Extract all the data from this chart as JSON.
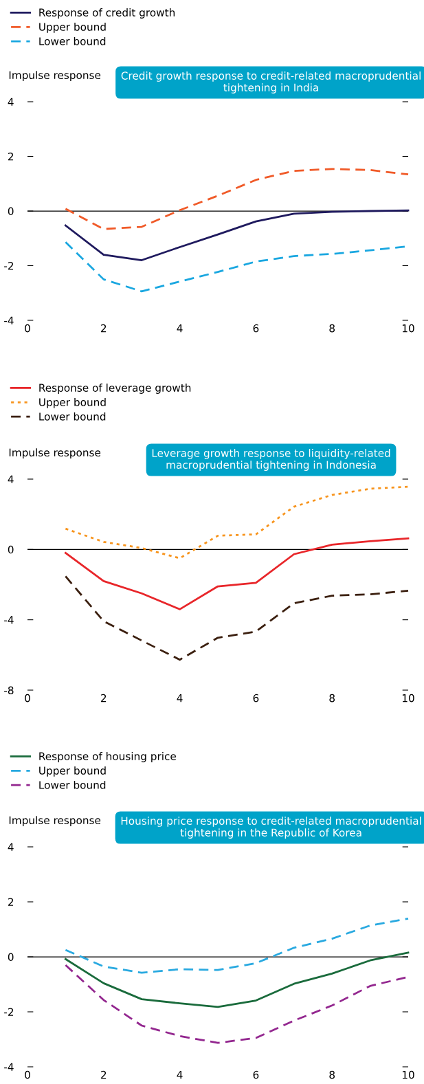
{
  "chart_data": [
    {
      "type": "line",
      "title": "Credit growth response to credit-related macroprudential tightening in India",
      "ylabel": "Impulse response",
      "x": [
        1,
        2,
        3,
        4,
        5,
        6,
        7,
        8,
        9,
        10
      ],
      "xlim": [
        0,
        10
      ],
      "xticks": [
        0,
        2,
        4,
        6,
        8,
        10
      ],
      "ylim": [
        -4,
        4
      ],
      "yticks": [
        -4,
        -2,
        0,
        2,
        4
      ],
      "grid": false,
      "legend": "top left",
      "ref_lines": [
        {
          "axis": "y",
          "value": 0,
          "color": "#000000"
        }
      ],
      "series": [
        {
          "name": "Response of credit growth",
          "color": "#1f1a5e",
          "line_style": "solid",
          "values": [
            -0.53,
            -1.6,
            -1.8,
            -1.32,
            -0.86,
            -0.38,
            -0.1,
            -0.03,
            0.0,
            0.02
          ]
        },
        {
          "name": "Upper bound",
          "color": "#f05a28",
          "line_style": "dashed",
          "values": [
            0.08,
            -0.66,
            -0.58,
            0.03,
            0.56,
            1.14,
            1.47,
            1.54,
            1.5,
            1.34
          ]
        },
        {
          "name": "Lower bound",
          "color": "#1aa7e0",
          "line_style": "dashed",
          "values": [
            -1.14,
            -2.5,
            -2.94,
            -2.58,
            -2.23,
            -1.85,
            -1.65,
            -1.57,
            -1.44,
            -1.29
          ]
        }
      ]
    },
    {
      "type": "line",
      "title": "Leverage growth response to liquidity-related macroprudential tightening in Indonesia",
      "ylabel": "Impulse response",
      "x": [
        1,
        2,
        3,
        4,
        5,
        6,
        7,
        8,
        9,
        10
      ],
      "xlim": [
        0,
        10
      ],
      "xticks": [
        0,
        2,
        4,
        6,
        8,
        10
      ],
      "ylim": [
        -8,
        4
      ],
      "yticks": [
        -8,
        -4,
        0,
        4
      ],
      "grid": false,
      "legend": "top left",
      "ref_lines": [
        {
          "axis": "y",
          "value": 0,
          "color": "#000000"
        }
      ],
      "series": [
        {
          "name": "Response of leverage growth",
          "color": "#e8262a",
          "line_style": "solid",
          "values": [
            -0.2,
            -1.8,
            -2.5,
            -3.4,
            -2.1,
            -1.9,
            -0.27,
            0.27,
            0.47,
            0.63
          ]
        },
        {
          "name": "Upper bound",
          "color": "#f7941d",
          "line_style": "dotted",
          "values": [
            1.18,
            0.43,
            0.08,
            -0.5,
            0.78,
            0.86,
            2.43,
            3.1,
            3.45,
            3.57
          ]
        },
        {
          "name": "Lower bound",
          "color": "#3b1f0f",
          "line_style": "dashed",
          "values": [
            -1.53,
            -4.08,
            -5.18,
            -6.27,
            -5.02,
            -4.67,
            -3.06,
            -2.63,
            -2.55,
            -2.35
          ]
        }
      ]
    },
    {
      "type": "line",
      "title": "Housing price response to credit-related macroprudential tightening in the Republic of Korea",
      "ylabel": "Impulse response",
      "x": [
        1,
        2,
        3,
        4,
        5,
        6,
        7,
        8,
        9,
        10
      ],
      "xlim": [
        0,
        10
      ],
      "xticks": [
        0,
        2,
        4,
        6,
        8,
        10
      ],
      "ylim": [
        -4,
        4
      ],
      "yticks": [
        -4,
        -2,
        0,
        2,
        4
      ],
      "grid": false,
      "legend": "top left",
      "ref_lines": [
        {
          "axis": "y",
          "value": 0,
          "color": "#000000"
        }
      ],
      "series": [
        {
          "name": "Response of housing price",
          "color": "#1a6b3c",
          "line_style": "solid",
          "values": [
            -0.08,
            -0.96,
            -1.54,
            -1.69,
            -1.82,
            -1.59,
            -0.98,
            -0.61,
            -0.13,
            0.15
          ]
        },
        {
          "name": "Upper bound",
          "color": "#29a9e0",
          "line_style": "dashed",
          "values": [
            0.25,
            -0.35,
            -0.58,
            -0.45,
            -0.48,
            -0.23,
            0.33,
            0.66,
            1.14,
            1.39
          ]
        },
        {
          "name": "Lower bound",
          "color": "#93278f",
          "line_style": "dashed",
          "values": [
            -0.3,
            -1.57,
            -2.5,
            -2.88,
            -3.13,
            -2.95,
            -2.32,
            -1.77,
            -1.06,
            -0.73
          ]
        }
      ]
    }
  ]
}
